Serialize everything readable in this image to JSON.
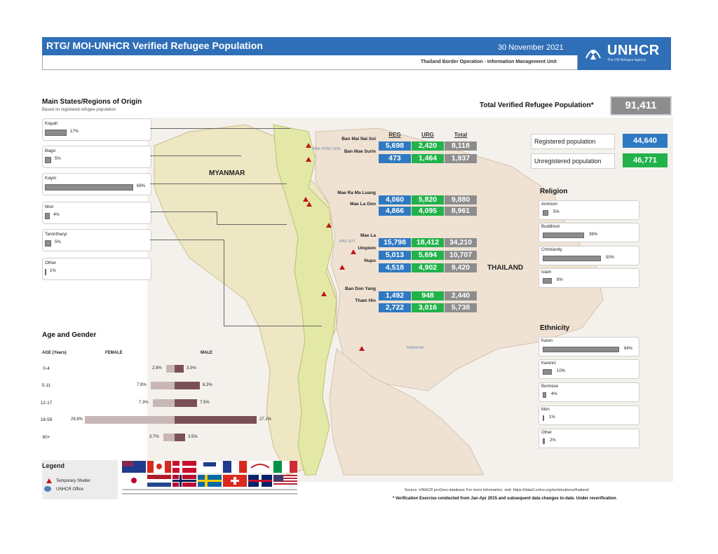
{
  "header": {
    "title": "RTG/ MOI-UNHCR Verified Refugee Population",
    "date": "30 November 2021",
    "logo": "UNHCR",
    "logo_tagline": "The UN Refugee Agency",
    "unit": "Thailand Border Operation - Information Management Unit"
  },
  "origin": {
    "title": "Main States/Regions of Origin",
    "subtitle": "Based on registered refugee population",
    "items": [
      {
        "name": "Kayah",
        "pct": "17%",
        "value": 17
      },
      {
        "name": "Bago",
        "pct": "5%",
        "value": 5
      },
      {
        "name": "Kayin",
        "pct": "68%",
        "value": 68
      },
      {
        "name": "Mon",
        "pct": "4%",
        "value": 4
      },
      {
        "name": "Tanintharyi",
        "pct": "5%",
        "value": 5
      },
      {
        "name": "Other",
        "pct": "1%",
        "value": 1
      }
    ]
  },
  "map": {
    "myanmar_label": "MYANMAR",
    "thailand_label": "THAILAND",
    "office_labels": [
      "MAE HONG SON",
      "MAE SOT",
      "BANGKOK"
    ],
    "col_headers": [
      "REG",
      "URG",
      "Total"
    ],
    "camps": [
      {
        "name": "Ban Mai Nai Soi",
        "reg": "5,698",
        "urg": "2,420",
        "total": "8,118"
      },
      {
        "name": "Ban Mae Surin",
        "reg": "473",
        "urg": "1,464",
        "total": "1,937"
      },
      {
        "name": "Mae Ra Ma Luang",
        "reg": "4,060",
        "urg": "5,820",
        "total": "9,880"
      },
      {
        "name": "Mae La Oon",
        "reg": "4,866",
        "urg": "4,095",
        "total": "8,961"
      },
      {
        "name": "Mae La",
        "reg": "15,798",
        "urg": "18,412",
        "total": "34,210"
      },
      {
        "name": "Umpiem",
        "reg": "5,013",
        "urg": "5,694",
        "total": "10,707"
      },
      {
        "name": "Nupo",
        "reg": "4,518",
        "urg": "4,902",
        "total": "9,420"
      },
      {
        "name": "Ban Don Yang",
        "reg": "1,492",
        "urg": "948",
        "total": "2,440"
      },
      {
        "name": "Tham Hin",
        "reg": "2,722",
        "urg": "3,016",
        "total": "5,738"
      }
    ]
  },
  "totals": {
    "total_label": "Total Verified Refugee Population*",
    "total_value": "91,411",
    "registered_label": "Registered population",
    "registered_value": "44,640",
    "unregistered_label": "Unregistered population",
    "unregistered_value": "46,771"
  },
  "religion": {
    "title": "Religion",
    "items": [
      {
        "name": "Animism",
        "pct": "5%",
        "value": 5
      },
      {
        "name": "Buddhism",
        "pct": "36%",
        "value": 36
      },
      {
        "name": "Christianity",
        "pct": "50%",
        "value": 50
      },
      {
        "name": "Islam",
        "pct": "8%",
        "value": 8
      }
    ]
  },
  "ethnicity": {
    "title": "Ethnicity",
    "items": [
      {
        "name": "Karen",
        "pct": "84%",
        "value": 84
      },
      {
        "name": "Karenni",
        "pct": "10%",
        "value": 10
      },
      {
        "name": "Burmese",
        "pct": "4%",
        "value": 4
      },
      {
        "name": "Mon",
        "pct": "1%",
        "value": 1
      },
      {
        "name": "Other",
        "pct": "2%",
        "value": 2
      }
    ]
  },
  "age_gender": {
    "title": "Age and Gender",
    "col_age": "AGE (Years)",
    "col_female": "FEMALE",
    "col_male": "MALE",
    "rows": [
      {
        "age": "0-4",
        "female": "2.9%",
        "male": "3.0%",
        "f": 2.9,
        "m": 3.0
      },
      {
        "age": "5-11",
        "female": "7.9%",
        "male": "8.3%",
        "f": 7.9,
        "m": 8.3
      },
      {
        "age": "12-17",
        "female": "7.3%",
        "male": "7.5%",
        "f": 7.3,
        "m": 7.5
      },
      {
        "age": "18-59",
        "female": "29.8%",
        "male": "27.1%",
        "f": 29.8,
        "m": 27.1
      },
      {
        "age": "60+",
        "female": "3.7%",
        "male": "3.5%",
        "f": 3.7,
        "m": 3.5
      }
    ]
  },
  "legend": {
    "title": "Legend",
    "shelter": "Temporary Shelter",
    "office": "UNHCR Office"
  },
  "footer": {
    "source": "Source: UNHCR proGres database",
    "more_info": "For more information, visit: https://data2.unhcr.org/en/situations/thailand",
    "note": "* Verification Exercise conducted from Jan-Apr 2015 and subsequent data changes to-date. Under reverification."
  }
}
